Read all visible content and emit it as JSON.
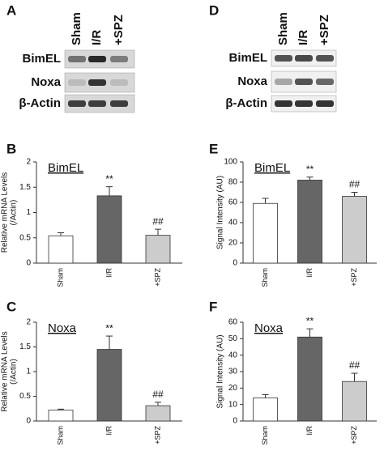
{
  "panels": {
    "A": {
      "letter": "A",
      "columns": [
        "Sham",
        "I/R",
        "+SPZ"
      ],
      "rows": [
        "BimEL",
        "Noxa",
        "β-Actin"
      ]
    },
    "D": {
      "letter": "D",
      "columns": [
        "Sham",
        "I/R",
        "+SPZ"
      ],
      "rows": [
        "BimEL",
        "Noxa",
        "β-Actin"
      ]
    }
  },
  "chart_data": [
    {
      "type": "bar",
      "panel": "B",
      "title": "BimEL",
      "ylabel": [
        "Relative mRNA Levels",
        "(/Actin)"
      ],
      "categories": [
        "Sham",
        "I/R",
        "+SPZ"
      ],
      "values": [
        0.54,
        1.33,
        0.55
      ],
      "errors": [
        0.06,
        0.18,
        0.12
      ],
      "value_annotations": [
        null,
        "**",
        "##"
      ],
      "colors": [
        "#ffffff",
        "#666666",
        "#cccccc"
      ],
      "ylim": [
        0,
        2
      ],
      "yticks": [
        0,
        0.5,
        1,
        1.5,
        2
      ]
    },
    {
      "type": "bar",
      "panel": "C",
      "title": "Noxa",
      "ylabel": [
        "Relative mRNA Levels",
        "(/Actin)"
      ],
      "categories": [
        "Sham",
        "I/R",
        "+SPZ"
      ],
      "values": [
        0.22,
        1.45,
        0.31
      ],
      "errors": [
        0.02,
        0.27,
        0.07
      ],
      "value_annotations": [
        null,
        "**",
        "##"
      ],
      "colors": [
        "#ffffff",
        "#666666",
        "#cccccc"
      ],
      "ylim": [
        0,
        2
      ],
      "yticks": [
        0,
        0.5,
        1,
        1.5,
        2
      ]
    },
    {
      "type": "bar",
      "panel": "E",
      "title": "BimEL",
      "ylabel": [
        "Signal Intensity (AU)"
      ],
      "categories": [
        "Sham",
        "I/R",
        "+SPZ"
      ],
      "values": [
        59,
        82,
        66
      ],
      "errors": [
        5,
        3,
        4
      ],
      "value_annotations": [
        null,
        "**",
        "##"
      ],
      "colors": [
        "#ffffff",
        "#666666",
        "#cccccc"
      ],
      "ylim": [
        0,
        100
      ],
      "yticks": [
        0,
        20,
        40,
        60,
        80,
        100
      ]
    },
    {
      "type": "bar",
      "panel": "F",
      "title": "Noxa",
      "ylabel": [
        "Signal Intensity (AU)"
      ],
      "categories": [
        "Sham",
        "I/R",
        "+SPZ"
      ],
      "values": [
        14,
        51,
        24
      ],
      "errors": [
        2,
        5,
        5
      ],
      "value_annotations": [
        null,
        "**",
        "##"
      ],
      "colors": [
        "#ffffff",
        "#666666",
        "#cccccc"
      ],
      "ylim": [
        0,
        60
      ],
      "yticks": [
        0,
        10,
        20,
        30,
        40,
        50,
        60
      ]
    }
  ]
}
